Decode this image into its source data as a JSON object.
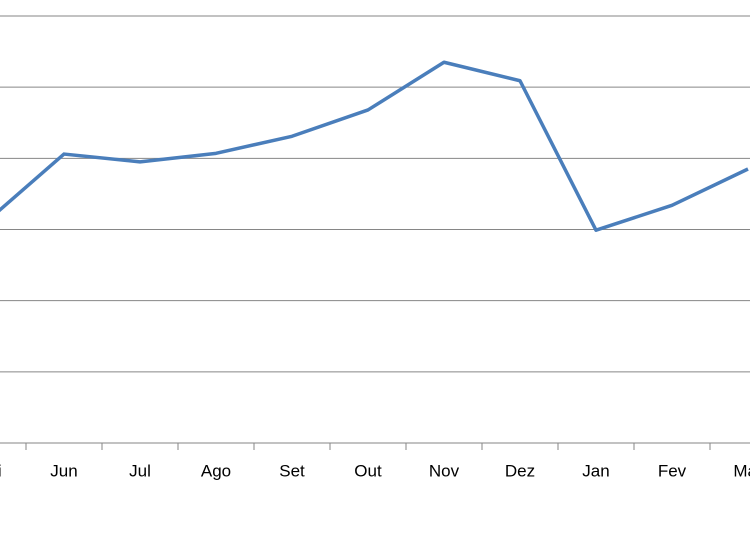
{
  "chart_data": {
    "type": "line",
    "categories": [
      "Mai",
      "Jun",
      "Jul",
      "Ago",
      "Set",
      "Out",
      "Nov",
      "Dez",
      "Jan",
      "Fev",
      "Mar"
    ],
    "series": [
      {
        "color": "#4a7ebb",
        "values": [
          3.13,
          4.06,
          3.95,
          4.07,
          4.31,
          4.68,
          5.35,
          5.09,
          2.99,
          3.34,
          3.85
        ]
      }
    ],
    "ylim": [
      0,
      6
    ],
    "yticks": [
      0,
      1,
      2,
      3,
      4,
      5,
      6
    ],
    "grid": true
  }
}
